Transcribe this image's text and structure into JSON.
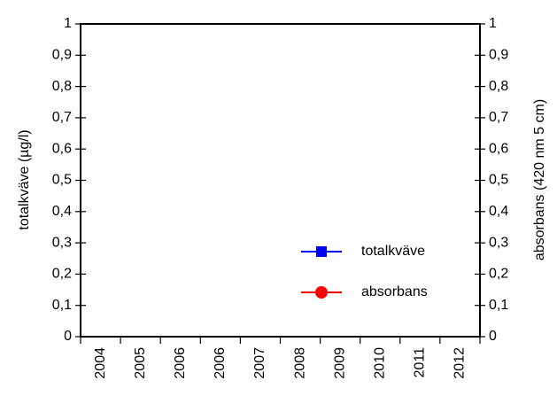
{
  "chart_data": {
    "type": "line",
    "categories": [
      "2004",
      "2005",
      "2006",
      "2006",
      "2007",
      "2008",
      "2009",
      "2010",
      "2011",
      "2012"
    ],
    "y_label": "totalkväve (µg/l)",
    "y2_label": "absorbans (420 nm 5 cm)",
    "series": [
      {
        "name": "totalkväve",
        "color": "#0000ff",
        "marker": "square",
        "values": [
          null,
          null,
          null,
          null,
          null,
          null,
          null,
          null,
          null,
          null
        ]
      },
      {
        "name": "absorbans",
        "color": "#ff0000",
        "marker": "circle",
        "axis": "y2",
        "values": [
          null,
          null,
          null,
          null,
          null,
          null,
          null,
          null,
          null,
          null
        ]
      }
    ],
    "ylim": [
      0,
      1
    ],
    "yticks": [
      0,
      {
        "value": 0.1,
        "label": "0,1"
      },
      {
        "value": 0.2,
        "label": "0,2"
      },
      {
        "value": 0.3,
        "label": "0,3"
      },
      {
        "value": 0.4,
        "label": "0,4"
      },
      {
        "value": 0.5,
        "label": "0,5"
      },
      {
        "value": 0.6,
        "label": "0,6"
      },
      {
        "value": 0.7,
        "label": "0,7"
      },
      {
        "value": 0.8,
        "label": "0,8"
      },
      {
        "value": 0.9,
        "label": "0,9"
      },
      1
    ],
    "y2lim": [
      0,
      1
    ],
    "y2ticks": [
      0,
      {
        "value": 0.1,
        "label": "0,1"
      },
      {
        "value": 0.2,
        "label": "0,2"
      },
      {
        "value": 0.3,
        "label": "0,3"
      },
      {
        "value": 0.4,
        "label": "0,4"
      },
      {
        "value": 0.5,
        "label": "0,5"
      },
      {
        "value": 0.6,
        "label": "0,6"
      },
      {
        "value": 0.7,
        "label": "0,7"
      },
      {
        "value": 0.8,
        "label": "0,8"
      },
      {
        "value": 0.9,
        "label": "0,9"
      },
      1
    ],
    "grid": false
  }
}
